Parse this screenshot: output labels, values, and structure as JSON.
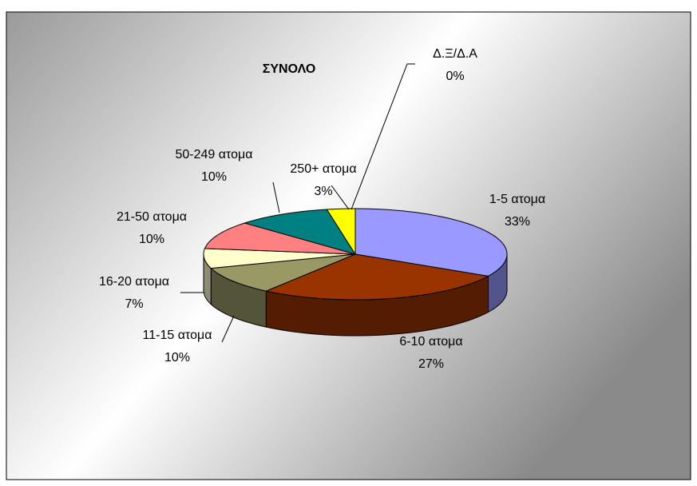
{
  "chart_data": {
    "type": "pie",
    "title": "ΣΥΝΟΛΟ",
    "categories": [
      "1-5 ατομα",
      "6-10 ατομα",
      "11-15 ατομα",
      "16-20 ατομα",
      "21-50 ατομα",
      "50-249 ατομα",
      "250+ ατομα",
      "Δ.Ξ/Δ.Α"
    ],
    "values": [
      33,
      27,
      10,
      7,
      10,
      10,
      3,
      0
    ],
    "value_labels": [
      "33%",
      "27%",
      "10%",
      "7%",
      "10%",
      "10%",
      "3%",
      "0%"
    ],
    "colors": [
      "#9999ff",
      "#993300",
      "#999966",
      "#ffffcc",
      "#ff8080",
      "#008080",
      "#ffff00",
      "#333366"
    ]
  }
}
